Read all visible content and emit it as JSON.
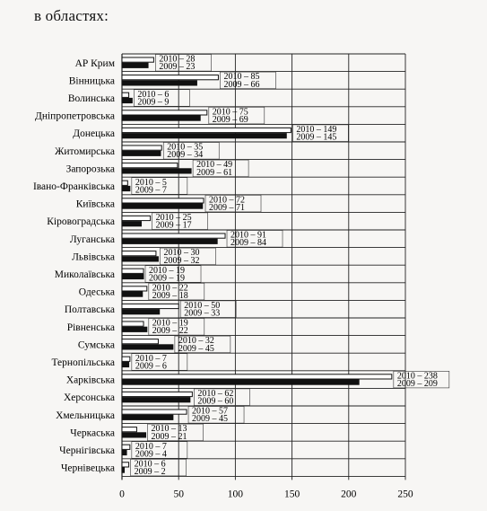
{
  "heading": "в областях:",
  "chart_data": {
    "type": "bar",
    "orientation": "horizontal",
    "xlim": [
      0,
      250
    ],
    "xticks": [
      0,
      50,
      100,
      150,
      200,
      250
    ],
    "grid": true,
    "series": [
      {
        "key": "2010",
        "color": "#ffffff",
        "edge": "#111111"
      },
      {
        "key": "2009",
        "color": "#111111",
        "edge": "#111111"
      }
    ],
    "categories": [
      {
        "name": "АР Крим",
        "v2010": 28,
        "v2009": 23,
        "l2010": "2010 – 28",
        "l2009": "2009 – 23"
      },
      {
        "name": "Вінницька",
        "v2010": 85,
        "v2009": 66,
        "l2010": "2010 – 85",
        "l2009": "2009 – 66"
      },
      {
        "name": "Волинська",
        "v2010": 6,
        "v2009": 9,
        "l2010": "2010 – 6",
        "l2009": "2009 – 9"
      },
      {
        "name": "Дніпропетровська",
        "v2010": 75,
        "v2009": 69,
        "l2010": "2010 – 75",
        "l2009": "2009 – 69"
      },
      {
        "name": "Донецька",
        "v2010": 149,
        "v2009": 145,
        "l2010": "2010 – 149",
        "l2009": "2009 – 145"
      },
      {
        "name": "Житомирська",
        "v2010": 35,
        "v2009": 34,
        "l2010": "2010 – 35",
        "l2009": "2009 – 34"
      },
      {
        "name": "Запорозька",
        "v2010": 49,
        "v2009": 61,
        "l2010": "2010 – 49",
        "l2009": "2009 – 61"
      },
      {
        "name": "Івано-Франківська",
        "v2010": 5,
        "v2009": 7,
        "l2010": "2010 – 5",
        "l2009": "2009 – 7"
      },
      {
        "name": "Київська",
        "v2010": 72,
        "v2009": 71,
        "l2010": "2010 – 72",
        "l2009": "2009 – 71"
      },
      {
        "name": "Кіровоградська",
        "v2010": 25,
        "v2009": 17,
        "l2010": "2010 – 25",
        "l2009": "2009 – 17"
      },
      {
        "name": "Луганська",
        "v2010": 91,
        "v2009": 84,
        "l2010": "2010 – 91",
        "l2009": "2009 – 84"
      },
      {
        "name": "Львівська",
        "v2010": 30,
        "v2009": 32,
        "l2010": "2010 – 30",
        "l2009": "2009 – 32"
      },
      {
        "name": "Миколаївська",
        "v2010": 19,
        "v2009": 19,
        "l2010": "2010 – 19",
        "l2009": "2009 – 19"
      },
      {
        "name": "Одеська",
        "v2010": 22,
        "v2009": 18,
        "l2010": "2010 – 22",
        "l2009": "2009 – 18"
      },
      {
        "name": "Полтавська",
        "v2010": 50,
        "v2009": 33,
        "l2010": "2010 – 50",
        "l2009": "2009 – 33"
      },
      {
        "name": "Рівненська",
        "v2010": 19,
        "v2009": 22,
        "l2010": "2010 – 19",
        "l2009": "2009 – 22"
      },
      {
        "name": "Сумська",
        "v2010": 32,
        "v2009": 45,
        "l2010": "2010 – 32",
        "l2009": "2009 – 45"
      },
      {
        "name": "Тернопільська",
        "v2010": 7,
        "v2009": 6,
        "l2010": "2010 – 7",
        "l2009": "2009 – 6"
      },
      {
        "name": "Харківська",
        "v2010": 238,
        "v2009": 209,
        "l2010": "2010 – 238",
        "l2009": "2009 – 209"
      },
      {
        "name": "Херсонська",
        "v2010": 62,
        "v2009": 60,
        "l2010": "2010 – 62",
        "l2009": "2009 – 60"
      },
      {
        "name": "Хмельницька",
        "v2010": 57,
        "v2009": 45,
        "l2010": "2010 – 57",
        "l2009": "2009 – 45"
      },
      {
        "name": "Черкаська",
        "v2010": 13,
        "v2009": 21,
        "l2010": "2010 – 13",
        "l2009": "2009 – 21"
      },
      {
        "name": "Чернігівська",
        "v2010": 7,
        "v2009": 4,
        "l2010": "2010 – 7",
        "l2009": "2009 – 4"
      },
      {
        "name": "Чернівецька",
        "v2010": 6,
        "v2009": 2,
        "l2010": "2010 – 6",
        "l2009": "2009 – 2"
      }
    ]
  }
}
